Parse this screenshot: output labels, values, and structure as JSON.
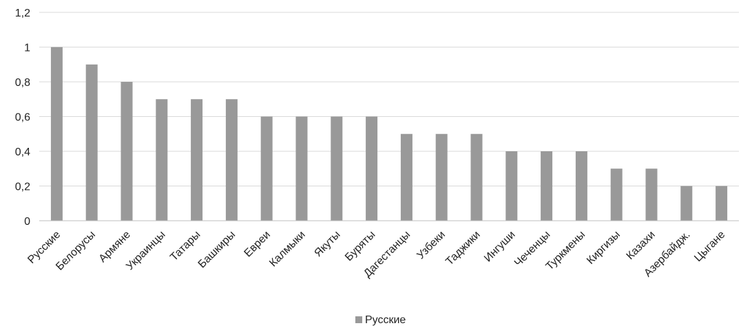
{
  "chart_data": {
    "type": "bar",
    "categories": [
      "Русские",
      "Белорусы",
      "Армяне",
      "Украинцы",
      "Татары",
      "Башкиры",
      "Евреи",
      "Калмыки",
      "Якуты",
      "Буряты",
      "Дагестанцы",
      "Узбеки",
      "Таджики",
      "Ингуши",
      "Чеченцы",
      "Туркмены",
      "Киргизы",
      "Казахи",
      "Азербайдж.",
      "Цыгане"
    ],
    "series": [
      {
        "name": "Русские",
        "values": [
          1.0,
          0.9,
          0.8,
          0.7,
          0.7,
          0.7,
          0.6,
          0.6,
          0.6,
          0.6,
          0.5,
          0.5,
          0.5,
          0.4,
          0.4,
          0.4,
          0.3,
          0.3,
          0.2,
          0.2
        ],
        "color": "#999999"
      }
    ],
    "ylim": [
      0,
      1.2
    ],
    "yticks": [
      "0",
      "0,2",
      "0,4",
      "0,6",
      "0,8",
      "1",
      "1,2"
    ],
    "grid": true,
    "legend": "bottom"
  }
}
